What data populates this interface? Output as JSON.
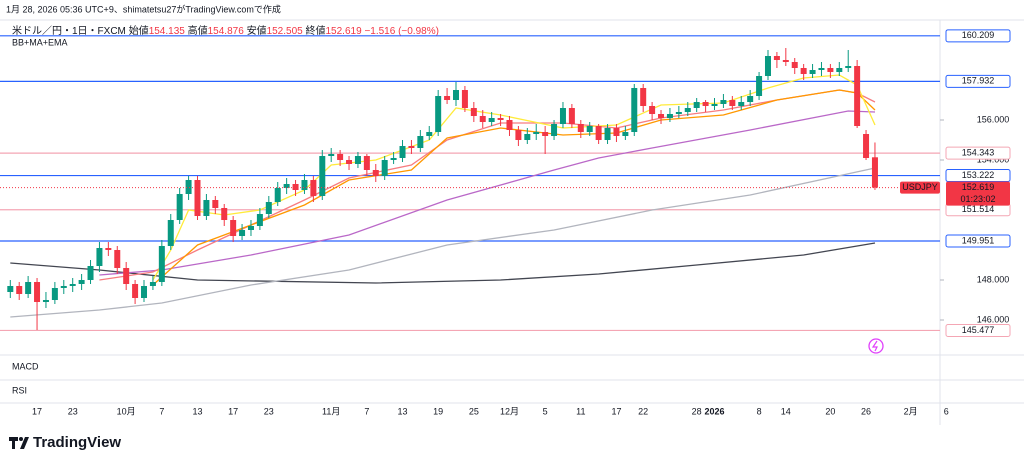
{
  "caption": "1月 28, 2026 05:36 UTC+9、shimatetsu27がTradingView.comで作成",
  "footer": "TradingView",
  "chart_data": {
    "type": "candlestick",
    "title": "米ドル／円・1日・FXCM",
    "ohlc_labels": [
      "始値",
      "高値",
      "安値",
      "終値"
    ],
    "change_text": "−1.516 (−0.98%)",
    "indicator_name": "BB+MA+EMA",
    "panes": [
      "MACD",
      "RSI"
    ],
    "symbol": "USDJPY",
    "countdown": "01:23:02",
    "up_color": "#089981",
    "down_color": "#f23645",
    "ylim": [
      144.25,
      160.5
    ],
    "yticks": [
      {
        "value": 146,
        "label": "146.000"
      },
      {
        "value": 148,
        "label": "148.000"
      },
      {
        "value": 154,
        "label": "154.000"
      },
      {
        "value": 156,
        "label": "156.000"
      }
    ],
    "levels": [
      {
        "value": 160.209,
        "color": "#2962ff"
      },
      {
        "value": 157.932,
        "color": "#2962ff"
      },
      {
        "value": 154.343,
        "color": "#f4a6b4"
      },
      {
        "value": 153.222,
        "color": "#2962ff"
      },
      {
        "value": 151.514,
        "color": "#f4a6b4"
      },
      {
        "value": 149.951,
        "color": "#2962ff"
      },
      {
        "value": 145.477,
        "color": "#f4a6b4"
      }
    ],
    "categories": [
      null,
      null,
      null,
      "17",
      null,
      null,
      null,
      "23",
      null,
      null,
      null,
      null,
      null,
      "10月",
      null,
      null,
      null,
      "7",
      null,
      null,
      null,
      "13",
      null,
      null,
      null,
      "17",
      null,
      null,
      null,
      "23",
      null,
      null,
      null,
      null,
      null,
      null,
      "11月",
      null,
      null,
      null,
      "7",
      null,
      null,
      null,
      "13",
      null,
      null,
      null,
      "19",
      null,
      null,
      null,
      "25",
      null,
      null,
      null,
      "12月",
      null,
      null,
      null,
      "5",
      null,
      null,
      null,
      "11",
      null,
      null,
      null,
      "17",
      null,
      null,
      "22",
      null,
      null,
      null,
      null,
      null,
      "28",
      null,
      "2026",
      null,
      null,
      null,
      null,
      "8",
      null,
      null,
      "14",
      null,
      null,
      null,
      null,
      "20",
      null,
      null,
      null,
      "26",
      null,
      null,
      null,
      null,
      "2月",
      null,
      null,
      null,
      "6"
    ],
    "open": [
      147.4,
      147.7,
      147.3,
      147.9,
      146.9,
      147.0,
      147.6,
      147.7,
      147.8,
      148.0,
      148.7,
      149.6,
      149.5,
      148.6,
      147.8,
      147.1,
      147.7,
      147.9,
      149.7,
      151.0,
      152.3,
      153.0,
      151.2,
      152.0,
      151.6,
      151.0,
      150.2,
      150.5,
      150.7,
      151.3,
      151.9,
      152.6,
      152.8,
      152.5,
      153.0,
      152.2,
      154.2,
      154.3,
      154.0,
      153.8,
      154.2,
      153.5,
      153.2,
      154.0,
      154.1,
      154.7,
      154.6,
      155.2,
      155.4,
      157.2,
      157.0,
      157.5,
      156.6,
      156.2,
      155.9,
      156.1,
      156.0,
      155.5,
      155.0,
      155.3,
      155.4,
      155.2,
      155.8,
      156.6,
      155.8,
      155.4,
      155.7,
      155.0,
      155.6,
      155.2,
      155.4,
      157.6,
      156.7,
      156.3,
      156.1,
      156.3,
      156.4,
      156.6,
      156.9,
      156.7,
      156.8,
      157.0,
      156.7,
      156.9,
      157.2,
      158.2,
      159.2,
      159.0,
      158.9,
      158.6,
      158.3,
      158.5,
      158.6,
      158.4,
      158.6,
      158.7,
      155.3,
      154.135,
      null,
      null,
      null,
      null,
      null,
      null,
      null,
      null
    ],
    "high": [
      148.0,
      147.9,
      148.2,
      148.1,
      147.4,
      147.9,
      148.0,
      148.1,
      148.3,
      149.0,
      149.9,
      149.9,
      149.7,
      148.9,
      148.0,
      148.0,
      148.2,
      150.0,
      151.3,
      152.6,
      153.2,
      153.2,
      152.3,
      152.2,
      151.8,
      151.2,
      150.8,
      151.0,
      151.6,
      152.2,
      152.9,
      153.1,
      153.0,
      153.3,
      153.2,
      154.5,
      154.6,
      154.5,
      154.2,
      154.4,
      154.3,
      153.8,
      154.2,
      154.4,
      155.0,
      155.0,
      155.5,
      155.7,
      157.5,
      157.6,
      157.9,
      157.7,
      156.9,
      156.5,
      156.4,
      156.3,
      156.2,
      155.7,
      155.6,
      155.8,
      155.7,
      156.0,
      156.9,
      156.8,
      156.0,
      155.9,
      155.8,
      155.8,
      155.8,
      155.7,
      157.8,
      157.8,
      156.9,
      156.5,
      156.6,
      156.7,
      156.9,
      157.1,
      157.0,
      157.1,
      157.3,
      157.2,
      157.2,
      157.5,
      158.4,
      159.5,
      159.4,
      159.6,
      159.1,
      158.8,
      158.8,
      158.9,
      158.8,
      158.9,
      159.5,
      159.0,
      155.5,
      154.876,
      null,
      null,
      null,
      null,
      null,
      null,
      null,
      null
    ],
    "low": [
      147.1,
      147.0,
      147.1,
      145.5,
      146.6,
      146.8,
      147.3,
      147.4,
      147.5,
      147.8,
      148.4,
      149.2,
      148.3,
      147.5,
      146.8,
      146.9,
      147.5,
      147.7,
      149.5,
      150.8,
      152.0,
      151.0,
      151.0,
      151.3,
      150.7,
      149.9,
      150.0,
      150.2,
      150.5,
      151.1,
      151.7,
      152.3,
      152.2,
      152.3,
      151.9,
      152.0,
      153.9,
      153.7,
      153.5,
      153.6,
      153.2,
      152.9,
      153.0,
      153.8,
      153.9,
      154.3,
      154.4,
      155.0,
      155.2,
      156.8,
      156.7,
      156.4,
      155.9,
      155.6,
      155.7,
      155.7,
      155.2,
      154.7,
      154.8,
      155.0,
      154.3,
      155.0,
      155.6,
      155.6,
      155.1,
      155.2,
      154.8,
      154.8,
      154.9,
      155.0,
      155.2,
      156.4,
      156.0,
      155.8,
      155.9,
      156.1,
      156.2,
      156.4,
      156.4,
      156.5,
      156.6,
      156.5,
      156.5,
      156.7,
      157.0,
      158.0,
      158.6,
      158.7,
      158.3,
      158.0,
      158.1,
      158.2,
      158.1,
      158.2,
      158.4,
      155.6,
      154.0,
      152.505,
      null,
      null,
      null,
      null,
      null,
      null,
      null,
      null
    ],
    "close": [
      147.7,
      147.3,
      147.9,
      146.9,
      147.0,
      147.6,
      147.7,
      147.8,
      148.0,
      148.7,
      149.6,
      149.5,
      148.6,
      147.8,
      147.1,
      147.7,
      147.9,
      149.7,
      151.0,
      152.3,
      153.0,
      151.2,
      152.0,
      151.6,
      151.0,
      150.2,
      150.5,
      150.7,
      151.3,
      151.9,
      152.6,
      152.8,
      152.5,
      153.0,
      152.2,
      154.2,
      154.3,
      154.0,
      153.8,
      154.2,
      153.5,
      153.2,
      154.0,
      154.1,
      154.7,
      154.6,
      155.2,
      155.4,
      157.2,
      157.0,
      157.5,
      156.6,
      156.2,
      155.9,
      156.1,
      156.0,
      155.5,
      155.0,
      155.3,
      155.4,
      155.2,
      155.8,
      156.6,
      155.8,
      155.4,
      155.7,
      155.0,
      155.6,
      155.2,
      155.4,
      157.6,
      156.7,
      156.3,
      156.1,
      156.3,
      156.4,
      156.6,
      156.9,
      156.7,
      156.8,
      157.0,
      156.7,
      156.9,
      157.2,
      158.2,
      159.2,
      159.0,
      158.9,
      158.6,
      158.3,
      158.5,
      158.6,
      158.4,
      158.6,
      158.7,
      155.7,
      154.1,
      152.619,
      null,
      null,
      null,
      null,
      null,
      null,
      null,
      null
    ],
    "indicators": [
      {
        "color": "#434651",
        "x": [
          0,
          10,
          21,
          41,
          55,
          66,
          77,
          89,
          97
        ],
        "values": [
          148.85,
          148.5,
          148.0,
          147.85,
          148.0,
          148.3,
          148.75,
          149.25,
          149.85
        ]
      },
      {
        "color": "#b2b5be",
        "x": [
          0,
          10,
          17,
          27,
          38,
          49,
          61,
          72,
          83,
          97
        ],
        "values": [
          146.15,
          146.5,
          146.85,
          147.75,
          148.5,
          149.75,
          150.5,
          151.5,
          152.25,
          153.6
        ]
      },
      {
        "color": "#ba68c8",
        "x": [
          10,
          17,
          27,
          38,
          49,
          61,
          66,
          72,
          83,
          94,
          97
        ],
        "values": [
          148.25,
          148.5,
          149.25,
          150.25,
          152.0,
          153.5,
          154.1,
          154.6,
          155.5,
          156.45,
          156.4
        ]
      },
      {
        "color": "#f77c80",
        "x": [
          10,
          16,
          21,
          27,
          33,
          38,
          45,
          49,
          55,
          62,
          68,
          73,
          80,
          86,
          93,
          95,
          97
        ],
        "values": [
          148.0,
          148.4,
          149.5,
          150.75,
          152.0,
          153.1,
          153.75,
          155.0,
          155.85,
          155.85,
          155.6,
          156.1,
          156.5,
          157.0,
          157.5,
          157.35,
          156.9
        ]
      },
      {
        "color": "#ff9800",
        "x": [
          16,
          21,
          27,
          33,
          38,
          45,
          49,
          55,
          62,
          68,
          73,
          80,
          86,
          93,
          95,
          97
        ],
        "values": [
          147.75,
          149.75,
          150.75,
          151.75,
          153.0,
          153.5,
          155.1,
          155.6,
          155.25,
          155.35,
          156.0,
          156.25,
          157.0,
          157.5,
          157.35,
          156.5
        ]
      },
      {
        "color": "#ffeb3b",
        "x": [
          16,
          18,
          20,
          24,
          28,
          33,
          36,
          41,
          47,
          50,
          55,
          62,
          68,
          73,
          80,
          85,
          89,
          93,
          95,
          97
        ],
        "values": [
          148.0,
          149.5,
          151.5,
          151.25,
          151.5,
          152.5,
          153.75,
          154.0,
          155.0,
          156.6,
          156.25,
          155.6,
          155.75,
          156.75,
          156.85,
          157.6,
          158.1,
          158.25,
          157.75,
          155.75
        ]
      }
    ]
  }
}
